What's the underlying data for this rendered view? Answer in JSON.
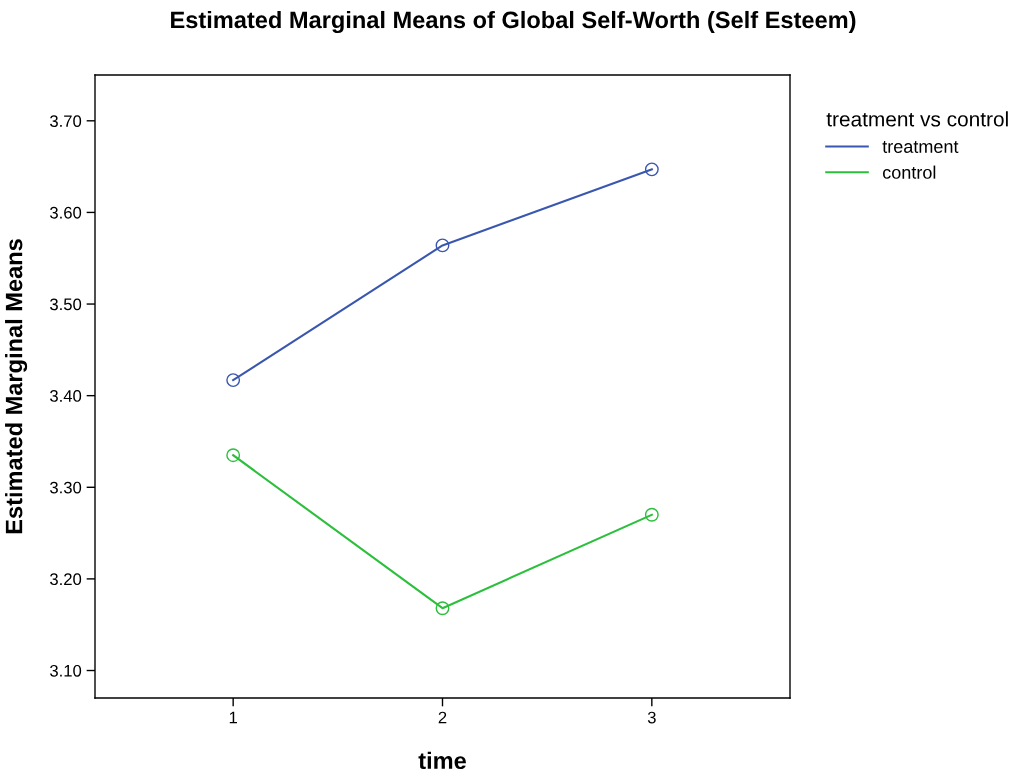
{
  "chart_data": {
    "type": "line",
    "title": "Estimated Marginal Means of Global Self-Worth (Self Esteem)",
    "xlabel": "time",
    "ylabel": "Estimated Marginal Means",
    "legend_title": "treatment vs control",
    "categories": [
      "1",
      "2",
      "3"
    ],
    "series": [
      {
        "name": "treatment",
        "color": "#3a57b0",
        "values": [
          3.417,
          3.564,
          3.647
        ]
      },
      {
        "name": "control",
        "color": "#2bbf3b",
        "values": [
          3.335,
          3.168,
          3.27
        ]
      }
    ],
    "ylim": [
      3.07,
      3.75
    ],
    "yticks": [
      {
        "value": 3.1,
        "label": "3.10"
      },
      {
        "value": 3.2,
        "label": "3.20"
      },
      {
        "value": 3.3,
        "label": "3.30"
      },
      {
        "value": 3.4,
        "label": "3.40"
      },
      {
        "value": 3.5,
        "label": "3.50"
      },
      {
        "value": 3.6,
        "label": "3.60"
      },
      {
        "value": 3.7,
        "label": "3.70"
      }
    ],
    "grid": false,
    "legend": "top right",
    "marker": "circle",
    "line_style": "solid"
  }
}
